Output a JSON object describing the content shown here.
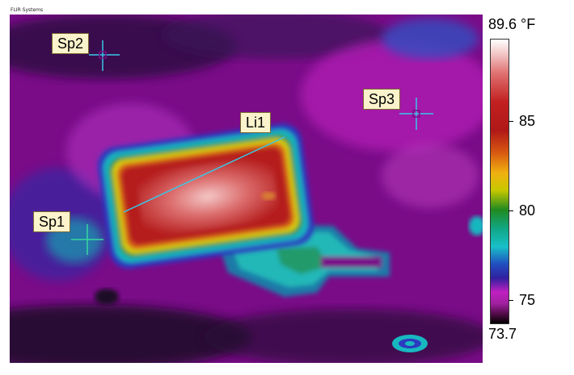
{
  "brand": "FLIR Systems",
  "spots": [
    {
      "label": "Sp2"
    },
    {
      "label": "Sp3"
    },
    {
      "label": "Sp1"
    }
  ],
  "line_label": "Li1",
  "scale": {
    "max": "89.6 °F",
    "min": "73.7",
    "ticks": [
      "85",
      "80",
      "75"
    ]
  },
  "colors": {
    "background_purple": "#6a0a7a",
    "hot": "#b01818",
    "crosshair": "#38c8e8",
    "label_bg": "#fbf3cc"
  }
}
